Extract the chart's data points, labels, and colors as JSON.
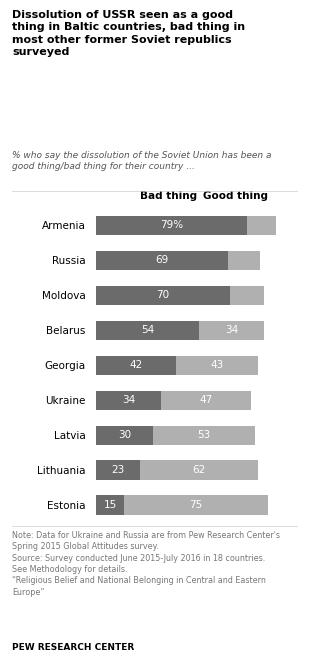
{
  "title": "Dissolution of USSR seen as a good\nthing in Baltic countries, bad thing in\nmost other former Soviet republics\nsurveyed",
  "subtitle": "% who say the dissolution of the Soviet Union has been a\ngood thing/bad thing for their country ...",
  "countries": [
    "Armenia",
    "Russia",
    "Moldova",
    "Belarus",
    "Georgia",
    "Ukraine",
    "Latvia",
    "Lithuania",
    "Estonia"
  ],
  "bad_thing": [
    79,
    69,
    70,
    54,
    42,
    34,
    30,
    23,
    15
  ],
  "good_thing": [
    15,
    17,
    18,
    34,
    43,
    47,
    53,
    62,
    75
  ],
  "bad_color": "#6b6b6b",
  "good_color": "#b0b0b0",
  "bar_height": 0.55,
  "note": "Note: Data for Ukraine and Russia are from Pew Research Center's\nSpring 2015 Global Attitudes survey.\nSource: Survey conducted June 2015-July 2016 in 18 countries.\nSee Methodology for details.\n“Religious Belief and National Belonging in Central and Eastern\nEurope”",
  "footer": "PEW RESEARCH CENTER",
  "title_color": "#000000",
  "subtitle_color": "#555555",
  "note_color": "#777777",
  "footer_color": "#000000",
  "bg_color": "#ffffff",
  "header_bad": "Bad thing",
  "header_good": "Good thing"
}
